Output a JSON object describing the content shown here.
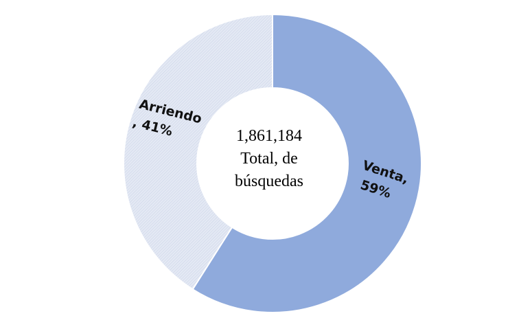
{
  "chart_data": {
    "type": "donut",
    "categories": [
      "Venta,",
      "Arriendo"
    ],
    "values": [
      59,
      41
    ],
    "value_labels": [
      "59%",
      ", 41%"
    ],
    "colors": [
      "#8faadc",
      "#dde4f1"
    ],
    "center_text": [
      "1,861,184",
      "Total, de",
      "búsquedas"
    ]
  }
}
